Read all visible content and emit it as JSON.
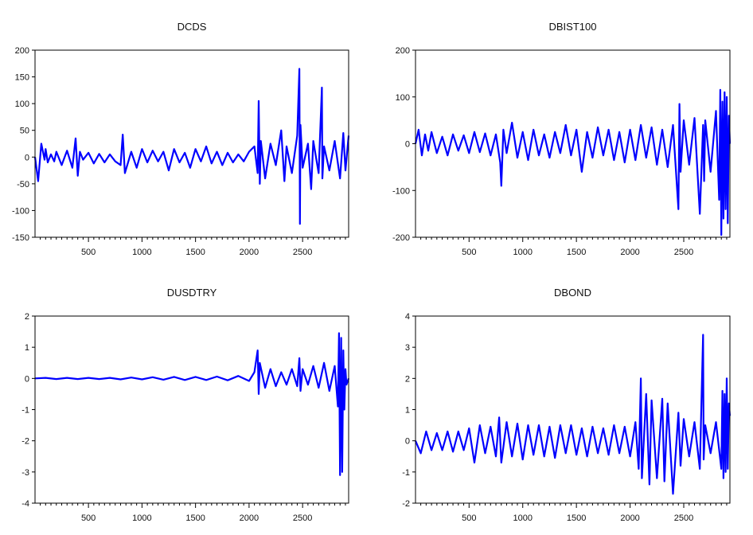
{
  "chart_data": [
    {
      "type": "line",
      "title": "DCDS",
      "x_ticks": [
        500,
        1000,
        1500,
        2000,
        2500
      ],
      "y_ticks": [
        200,
        150,
        100,
        50,
        0,
        -50,
        -100,
        -150
      ],
      "y_tick_labels": [
        "200",
        "150",
        "100",
        "50",
        "0",
        "-50",
        "-100",
        "-150"
      ],
      "xlim": [
        1,
        2930
      ],
      "ylim": [
        -150,
        200
      ],
      "grid": false,
      "series_color": "#0000ff",
      "series": [
        {
          "x": [
            1,
            30,
            60,
            90,
            100,
            120,
            150,
            180,
            200,
            250,
            300,
            350,
            380,
            400,
            420,
            450,
            500,
            550,
            600,
            650,
            700,
            750,
            800,
            820,
            840,
            900,
            950,
            1000,
            1050,
            1100,
            1150,
            1200,
            1250,
            1300,
            1350,
            1400,
            1450,
            1500,
            1550,
            1600,
            1650,
            1700,
            1750,
            1800,
            1850,
            1900,
            1950,
            2000,
            2050,
            2080,
            2090,
            2100,
            2110,
            2150,
            2200,
            2250,
            2300,
            2330,
            2350,
            2400,
            2450,
            2470,
            2475,
            2480,
            2500,
            2550,
            2580,
            2600,
            2650,
            2680,
            2685,
            2700,
            2750,
            2800,
            2850,
            2880,
            2900,
            2930
          ],
          "values": [
            0,
            -45,
            25,
            -5,
            15,
            -10,
            5,
            -8,
            10,
            -15,
            12,
            -20,
            35,
            -35,
            10,
            -5,
            8,
            -12,
            6,
            -10,
            5,
            -8,
            -15,
            42,
            -30,
            10,
            -20,
            15,
            -10,
            12,
            -8,
            10,
            -25,
            15,
            -10,
            8,
            -20,
            15,
            -8,
            20,
            -12,
            10,
            -15,
            8,
            -10,
            5,
            -8,
            10,
            20,
            -30,
            105,
            -50,
            30,
            -40,
            25,
            -15,
            50,
            -45,
            20,
            -30,
            40,
            165,
            -125,
            60,
            -20,
            25,
            -60,
            30,
            -30,
            130,
            -40,
            20,
            -25,
            30,
            -40,
            45,
            -25,
            40
          ]
        }
      ]
    },
    {
      "type": "line",
      "title": "DBIST100",
      "x_ticks": [
        500,
        1000,
        1500,
        2000,
        2500
      ],
      "y_ticks": [
        200,
        100,
        0,
        -100,
        -200
      ],
      "y_tick_labels": [
        "200",
        "100",
        "0",
        "-100",
        "-200"
      ],
      "xlim": [
        1,
        2930
      ],
      "ylim": [
        -200,
        200
      ],
      "grid": false,
      "series_color": "#0000ff",
      "series": [
        {
          "x": [
            1,
            30,
            60,
            90,
            120,
            150,
            200,
            250,
            300,
            350,
            400,
            450,
            500,
            550,
            600,
            650,
            700,
            750,
            790,
            800,
            820,
            850,
            900,
            950,
            1000,
            1050,
            1100,
            1150,
            1200,
            1250,
            1300,
            1350,
            1400,
            1450,
            1500,
            1550,
            1600,
            1650,
            1700,
            1750,
            1800,
            1850,
            1900,
            1950,
            2000,
            2050,
            2100,
            2150,
            2200,
            2250,
            2300,
            2350,
            2400,
            2450,
            2460,
            2470,
            2500,
            2550,
            2600,
            2650,
            2680,
            2690,
            2700,
            2750,
            2800,
            2830,
            2840,
            2850,
            2860,
            2870,
            2880,
            2890,
            2900,
            2910,
            2920,
            2930
          ],
          "values": [
            0,
            30,
            -25,
            20,
            -15,
            25,
            -20,
            15,
            -25,
            20,
            -15,
            18,
            -20,
            25,
            -18,
            22,
            -25,
            20,
            -40,
            -90,
            30,
            -20,
            45,
            -30,
            25,
            -35,
            30,
            -25,
            20,
            -30,
            25,
            -20,
            40,
            -25,
            30,
            -60,
            25,
            -30,
            35,
            -25,
            30,
            -35,
            25,
            -40,
            30,
            -35,
            40,
            -30,
            35,
            -45,
            30,
            -50,
            40,
            -140,
            85,
            -60,
            50,
            -45,
            55,
            -150,
            40,
            -80,
            50,
            -60,
            70,
            -120,
            115,
            -195,
            90,
            -160,
            110,
            -140,
            100,
            -170,
            60,
            0
          ]
        }
      ]
    },
    {
      "type": "line",
      "title": "DUSDTRY",
      "x_ticks": [
        500,
        1000,
        1500,
        2000,
        2500
      ],
      "y_ticks": [
        2,
        1,
        0,
        -1,
        -2,
        -3,
        -4
      ],
      "y_tick_labels": [
        "2",
        "1",
        "0",
        "-1",
        "-2",
        "-3",
        "-4"
      ],
      "xlim": [
        1,
        2930
      ],
      "ylim": [
        -4,
        2
      ],
      "grid": false,
      "series_color": "#0000ff",
      "series": [
        {
          "x": [
            1,
            100,
            200,
            300,
            400,
            500,
            600,
            700,
            800,
            900,
            1000,
            1100,
            1200,
            1300,
            1400,
            1500,
            1600,
            1700,
            1800,
            1900,
            2000,
            2050,
            2080,
            2090,
            2100,
            2150,
            2200,
            2250,
            2300,
            2350,
            2400,
            2450,
            2470,
            2480,
            2500,
            2550,
            2600,
            2650,
            2700,
            2750,
            2800,
            2830,
            2840,
            2850,
            2860,
            2870,
            2880,
            2890,
            2900,
            2910,
            2930
          ],
          "values": [
            0,
            0.02,
            -0.02,
            0.02,
            -0.02,
            0.02,
            -0.02,
            0.02,
            -0.03,
            0.03,
            -0.03,
            0.04,
            -0.04,
            0.05,
            -0.05,
            0.05,
            -0.05,
            0.06,
            -0.06,
            0.08,
            -0.08,
            0.2,
            0.9,
            -0.5,
            0.5,
            -0.3,
            0.3,
            -0.25,
            0.2,
            -0.2,
            0.3,
            -0.25,
            0.65,
            -0.4,
            0.3,
            -0.2,
            0.4,
            -0.3,
            0.5,
            -0.4,
            0.4,
            -0.9,
            1.45,
            -3.1,
            1.3,
            -3.0,
            0.9,
            -1.0,
            0.3,
            -0.2,
            0
          ]
        }
      ]
    },
    {
      "type": "line",
      "title": "DBOND",
      "x_ticks": [
        500,
        1000,
        1500,
        2000,
        2500
      ],
      "y_ticks": [
        4,
        3,
        2,
        1,
        0,
        -1,
        -2
      ],
      "y_tick_labels": [
        "4",
        "3",
        "2",
        "1",
        "0",
        "-1",
        "-2"
      ],
      "xlim": [
        1,
        2930
      ],
      "ylim": [
        -2,
        4
      ],
      "grid": false,
      "series_color": "#0000ff",
      "series": [
        {
          "x": [
            1,
            50,
            100,
            150,
            200,
            250,
            300,
            350,
            400,
            450,
            500,
            550,
            600,
            650,
            700,
            750,
            780,
            800,
            850,
            900,
            950,
            1000,
            1050,
            1100,
            1150,
            1200,
            1250,
            1300,
            1350,
            1400,
            1450,
            1500,
            1550,
            1600,
            1650,
            1700,
            1750,
            1800,
            1850,
            1900,
            1950,
            2000,
            2050,
            2080,
            2100,
            2110,
            2150,
            2180,
            2200,
            2250,
            2300,
            2320,
            2350,
            2400,
            2450,
            2470,
            2500,
            2550,
            2600,
            2650,
            2680,
            2685,
            2700,
            2750,
            2800,
            2850,
            2860,
            2870,
            2880,
            2890,
            2900,
            2910,
            2920,
            2930
          ],
          "values": [
            0,
            -0.4,
            0.3,
            -0.3,
            0.25,
            -0.3,
            0.3,
            -0.35,
            0.3,
            -0.3,
            0.4,
            -0.7,
            0.5,
            -0.4,
            0.45,
            -0.5,
            0.75,
            -0.7,
            0.6,
            -0.5,
            0.55,
            -0.6,
            0.5,
            -0.45,
            0.5,
            -0.5,
            0.45,
            -0.55,
            0.5,
            -0.4,
            0.5,
            -0.45,
            0.4,
            -0.5,
            0.45,
            -0.4,
            0.4,
            -0.45,
            0.5,
            -0.4,
            0.45,
            -0.5,
            0.6,
            -0.9,
            2.0,
            -1.2,
            1.5,
            -1.4,
            1.3,
            -1.2,
            1.35,
            -1.3,
            1.2,
            -1.7,
            0.9,
            -0.8,
            0.7,
            -0.5,
            0.6,
            -0.9,
            3.4,
            -0.6,
            0.5,
            -0.4,
            0.6,
            -0.9,
            1.6,
            -1.2,
            1.5,
            -1.0,
            2.0,
            -0.9,
            1.2,
            0.8
          ]
        }
      ]
    }
  ]
}
